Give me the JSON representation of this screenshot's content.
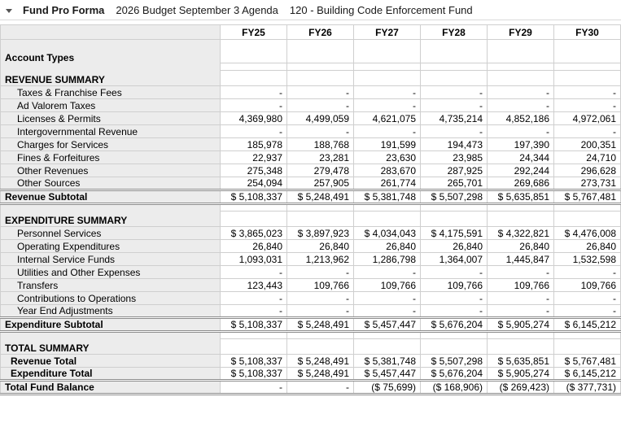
{
  "title_bar": {
    "caret_icon": "chevron-down",
    "report_name": "Fund Pro Forma",
    "budget_name": "2026 Budget September 3 Agenda",
    "fund_name": "120 - Building Code Enforcement Fund"
  },
  "colors": {
    "label_column_bg": "#ececec",
    "cell_border": "#cfcfcf",
    "subtotal_rule": "#8c8c8c",
    "text": "#000000",
    "title_text": "#1a1a1a"
  },
  "table": {
    "columns": [
      "FY25",
      "FY26",
      "FY27",
      "FY28",
      "FY29",
      "FY30"
    ],
    "rows": [
      {
        "type": "tall",
        "label": "Account Types",
        "values": [
          "",
          "",
          "",
          "",
          "",
          ""
        ]
      },
      {
        "type": "spacer",
        "label": "",
        "values": [
          "",
          "",
          "",
          "",
          "",
          ""
        ]
      },
      {
        "type": "section",
        "label": "REVENUE SUMMARY",
        "values": [
          "",
          "",
          "",
          "",
          "",
          ""
        ]
      },
      {
        "type": "item",
        "label": "Taxes & Franchise Fees",
        "values": [
          "-",
          "-",
          "-",
          "-",
          "-",
          "-"
        ]
      },
      {
        "type": "item",
        "label": "Ad Valorem Taxes",
        "values": [
          "-",
          "-",
          "-",
          "-",
          "-",
          "-"
        ]
      },
      {
        "type": "item",
        "label": "Licenses & Permits",
        "values": [
          "4,369,980",
          "4,499,059",
          "4,621,075",
          "4,735,214",
          "4,852,186",
          "4,972,061"
        ]
      },
      {
        "type": "item",
        "label": "Intergovernmental Revenue",
        "values": [
          "-",
          "-",
          "-",
          "-",
          "-",
          "-"
        ]
      },
      {
        "type": "item",
        "label": "Charges for Services",
        "values": [
          "185,978",
          "188,768",
          "191,599",
          "194,473",
          "197,390",
          "200,351"
        ]
      },
      {
        "type": "item",
        "label": "Fines & Forfeitures",
        "values": [
          "22,937",
          "23,281",
          "23,630",
          "23,985",
          "24,344",
          "24,710"
        ]
      },
      {
        "type": "item",
        "label": "Other Revenues",
        "values": [
          "275,348",
          "279,478",
          "283,670",
          "287,925",
          "292,244",
          "296,628"
        ]
      },
      {
        "type": "item",
        "label": "Other Sources",
        "values": [
          "254,094",
          "257,905",
          "261,774",
          "265,701",
          "269,686",
          "273,731"
        ]
      },
      {
        "type": "subtotal",
        "label": "Revenue Subtotal",
        "values": [
          "$ 5,108,337",
          "$ 5,248,491",
          "$ 5,381,748",
          "$ 5,507,298",
          "$ 5,635,851",
          "$ 5,767,481"
        ]
      },
      {
        "type": "spacer",
        "label": "",
        "values": [
          "",
          "",
          "",
          "",
          "",
          ""
        ]
      },
      {
        "type": "section",
        "label": "EXPENDITURE SUMMARY",
        "values": [
          "",
          "",
          "",
          "",
          "",
          ""
        ]
      },
      {
        "type": "item",
        "label": "Personnel Services",
        "values": [
          "$ 3,865,023",
          "$ 3,897,923",
          "$ 4,034,043",
          "$ 4,175,591",
          "$ 4,322,821",
          "$ 4,476,008"
        ]
      },
      {
        "type": "item",
        "label": "Operating Expenditures",
        "values": [
          "26,840",
          "26,840",
          "26,840",
          "26,840",
          "26,840",
          "26,840"
        ]
      },
      {
        "type": "item",
        "label": "Internal Service Funds",
        "values": [
          "1,093,031",
          "1,213,962",
          "1,286,798",
          "1,364,007",
          "1,445,847",
          "1,532,598"
        ]
      },
      {
        "type": "item",
        "label": "Utilities and Other Expenses",
        "values": [
          "-",
          "-",
          "-",
          "-",
          "-",
          "-"
        ]
      },
      {
        "type": "item",
        "label": "Transfers",
        "values": [
          "123,443",
          "109,766",
          "109,766",
          "109,766",
          "109,766",
          "109,766"
        ]
      },
      {
        "type": "item",
        "label": "Contributions to Operations",
        "values": [
          "-",
          "-",
          "-",
          "-",
          "-",
          "-"
        ]
      },
      {
        "type": "item",
        "label": "Year End Adjustments",
        "values": [
          "-",
          "-",
          "-",
          "-",
          "-",
          "-"
        ]
      },
      {
        "type": "subtotal",
        "label": "Expenditure Subtotal",
        "values": [
          "$ 5,108,337",
          "$ 5,248,491",
          "$ 5,457,447",
          "$ 5,676,204",
          "$ 5,905,274",
          "$ 6,145,212"
        ]
      },
      {
        "type": "spacer",
        "label": "",
        "values": [
          "",
          "",
          "",
          "",
          "",
          ""
        ]
      },
      {
        "type": "section",
        "label": "TOTAL SUMMARY",
        "values": [
          "",
          "",
          "",
          "",
          "",
          ""
        ]
      },
      {
        "type": "total",
        "label": "Revenue Total",
        "values": [
          "$ 5,108,337",
          "$ 5,248,491",
          "$ 5,381,748",
          "$ 5,507,298",
          "$ 5,635,851",
          "$ 5,767,481"
        ]
      },
      {
        "type": "total",
        "label": "Expenditure Total",
        "values": [
          "$ 5,108,337",
          "$ 5,248,491",
          "$ 5,457,447",
          "$ 5,676,204",
          "$ 5,905,274",
          "$ 6,145,212"
        ]
      },
      {
        "type": "grand",
        "label": "Total Fund Balance",
        "values": [
          "-",
          "-",
          "($ 75,699)",
          "($ 168,906)",
          "($ 269,423)",
          "($ 377,731)"
        ]
      }
    ]
  }
}
